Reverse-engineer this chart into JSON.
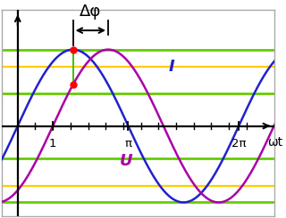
{
  "phase_shift": 1.0,
  "amplitude": 1.0,
  "I_color": "#2222cc",
  "U_color": "#aa00aa",
  "U_label": "U",
  "I_label": "I",
  "dot_color": "#ff0000",
  "dphi_label": "Δφ",
  "xlabel": "ωt",
  "x_tick_labels": [
    "1",
    "π",
    "2π"
  ],
  "x_tick_positions": [
    1.0,
    3.14159265,
    6.2831853
  ],
  "hlines_yellow": [
    -0.78,
    0.78
  ],
  "hlines_green_outer": [
    -1.0,
    1.0
  ],
  "hlines_green_inner": [
    -0.42,
    0.42
  ],
  "hline_yellow_color": "#ffcc00",
  "hline_green_color": "#66cc00",
  "vline_color": "#44bb00",
  "xlim": [
    -0.45,
    7.3
  ],
  "ylim": [
    -1.18,
    1.52
  ],
  "background_color": "#ffffff",
  "border_color": "#aaaaaa",
  "fig_width": 3.2,
  "fig_height": 2.45,
  "dpi": 100
}
